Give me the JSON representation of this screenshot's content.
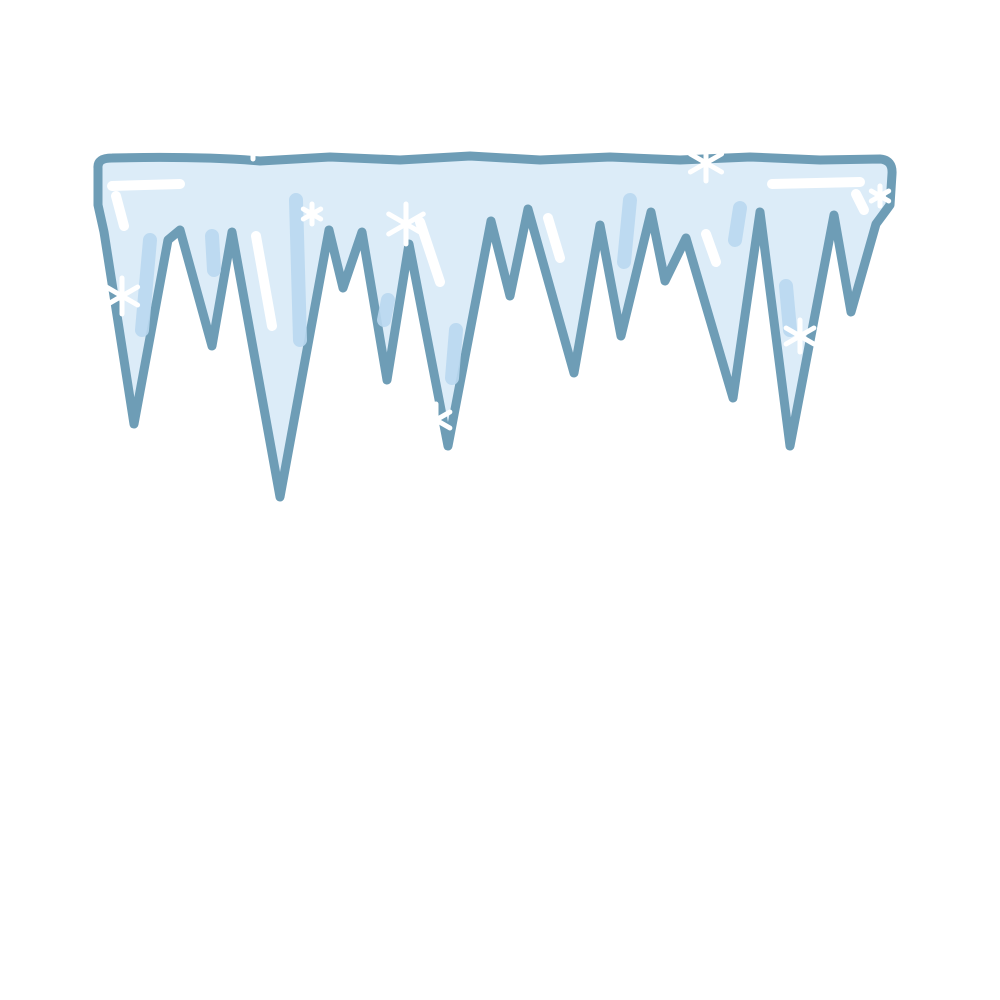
{
  "illustration": {
    "subject": "icicles",
    "icon": "icicles-icon",
    "colors": {
      "background": "#ffffff",
      "outline": "#6e9db6",
      "ice_fill": "#dcecf8",
      "ice_shade": "#b9d8ef",
      "highlight": "#ffffff"
    },
    "icicle_count": 14,
    "snowflake_count": 8
  }
}
